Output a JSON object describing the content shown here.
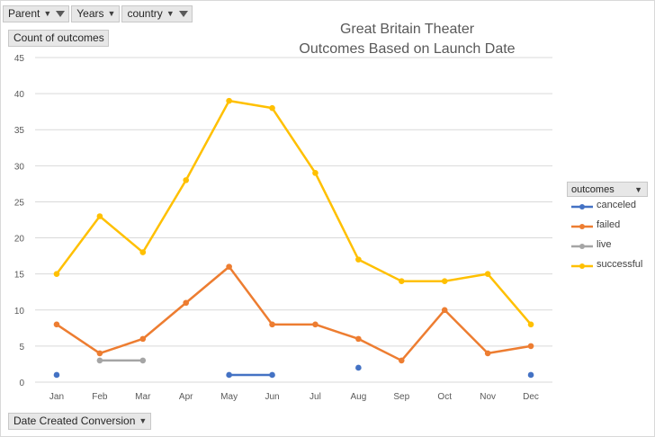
{
  "filters": [
    {
      "label": "Parent",
      "icon": "filter-funnel-icon"
    },
    {
      "label": "Years",
      "icon": "chevron-down-icon"
    },
    {
      "label": "country",
      "icon": "filter-funnel-icon"
    }
  ],
  "value_field": "Count of outcomes",
  "axis_field": "Date Created Conversion",
  "legend_field": "outcomes",
  "chart_data": {
    "type": "line",
    "title": "Great Britain Theater\nOutcomes Based on Launch Date",
    "title_lines": [
      "Great Britain Theater",
      "Outcomes Based on Launch Date"
    ],
    "categories": [
      "Jan",
      "Feb",
      "Mar",
      "Apr",
      "May",
      "Jun",
      "Jul",
      "Aug",
      "Sep",
      "Oct",
      "Nov",
      "Dec"
    ],
    "ylim": [
      0,
      45
    ],
    "yticks": [
      "0",
      "5",
      "10",
      "15",
      "20",
      "25",
      "30",
      "35",
      "40",
      "45"
    ],
    "grid": true,
    "legend_position": "right",
    "series": [
      {
        "name": "canceled",
        "color": "#4472c4",
        "values": [
          1,
          null,
          null,
          null,
          1,
          1,
          null,
          2,
          null,
          null,
          null,
          1
        ]
      },
      {
        "name": "failed",
        "color": "#ed7d31",
        "values": [
          8,
          4,
          6,
          11,
          16,
          8,
          8,
          6,
          3,
          10,
          4,
          5
        ]
      },
      {
        "name": "live",
        "color": "#a5a5a5",
        "values": [
          null,
          3,
          3,
          null,
          null,
          null,
          null,
          null,
          null,
          null,
          null,
          null
        ]
      },
      {
        "name": "successful",
        "color": "#ffc000",
        "values": [
          15,
          23,
          18,
          28,
          39,
          38,
          29,
          17,
          14,
          14,
          15,
          8
        ]
      }
    ]
  }
}
